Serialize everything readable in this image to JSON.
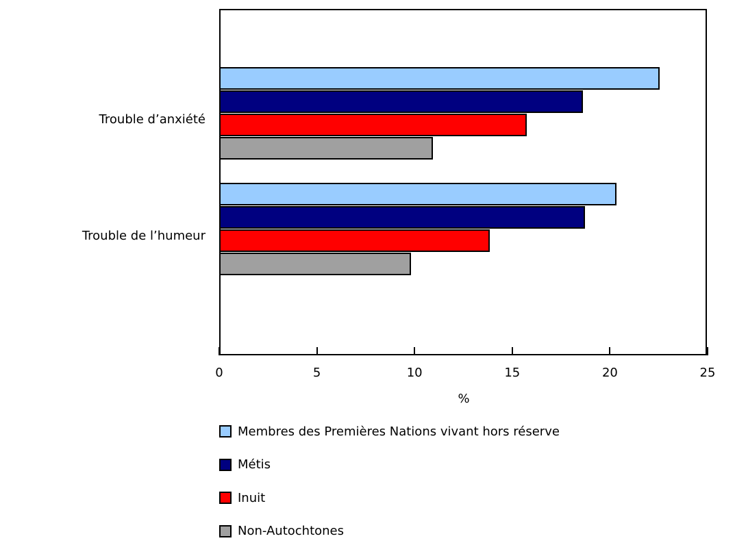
{
  "chart_data": {
    "type": "bar",
    "orientation": "horizontal",
    "title": "",
    "xlabel": "%",
    "ylabel": "",
    "xlim": [
      0,
      25
    ],
    "x_ticks": [
      0,
      5,
      10,
      15,
      20,
      25
    ],
    "grid": false,
    "legend_position": "bottom",
    "categories": [
      "Trouble d’anxiété",
      "Trouble de l’humeur"
    ],
    "series": [
      {
        "name": "Membres des Premières Nations vivant hors réserve",
        "color": "#99ccff",
        "values": [
          22.5,
          20.3
        ]
      },
      {
        "name": "Métis",
        "color": "#000080",
        "values": [
          18.6,
          18.7
        ]
      },
      {
        "name": "Inuit",
        "color": "#ff0000",
        "values": [
          15.7,
          13.8
        ]
      },
      {
        "name": "Non-Autochtones",
        "color": "#a0a0a0",
        "values": [
          10.9,
          9.8
        ]
      }
    ]
  }
}
